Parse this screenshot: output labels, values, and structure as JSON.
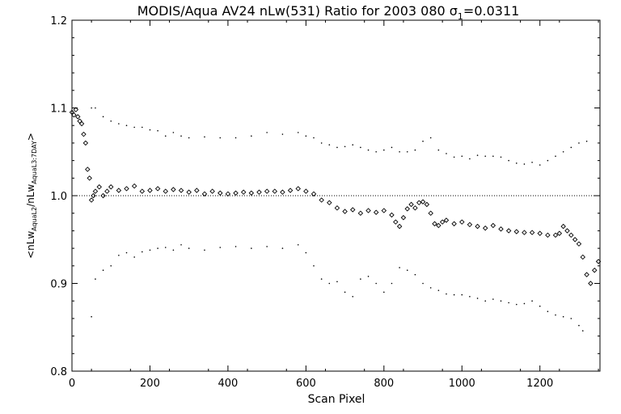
{
  "chart_data": {
    "type": "scatter",
    "title": "MODIS/Aqua AV24 nLw(531) Ratio for 2003 080 σ",
    "title_sub": "1",
    "title_tail": "=0.0311",
    "xlabel": "Scan Pixel",
    "ylabel_parts": [
      "<nLw",
      "AquaL2",
      "/nLw",
      "AquaL3:7DAY",
      ">"
    ],
    "xlim": [
      0,
      1354
    ],
    "ylim": [
      0.8,
      1.2
    ],
    "xticks": [
      0,
      200,
      400,
      600,
      800,
      1000,
      1200
    ],
    "yticks": [
      0.8,
      0.9,
      1.0,
      1.1,
      1.2
    ],
    "ytick_labels": [
      "0.8",
      "0.9",
      "1.0",
      "1.1",
      "1.2"
    ],
    "reference_line": 1.0,
    "grid": false,
    "legend": "none",
    "series": [
      {
        "role": "mean_ratio",
        "marker": "diamond",
        "x": [
          0,
          5,
          10,
          15,
          20,
          25,
          30,
          35,
          40,
          45,
          50,
          55,
          60,
          70,
          80,
          90,
          100,
          120,
          140,
          160,
          180,
          200,
          220,
          240,
          260,
          280,
          300,
          320,
          340,
          360,
          380,
          400,
          420,
          440,
          460,
          480,
          500,
          520,
          540,
          560,
          580,
          600,
          620,
          640,
          660,
          680,
          700,
          720,
          740,
          760,
          780,
          800,
          820,
          830,
          840,
          850,
          860,
          870,
          880,
          890,
          900,
          910,
          920,
          930,
          940,
          950,
          960,
          980,
          1000,
          1020,
          1040,
          1060,
          1080,
          1100,
          1120,
          1140,
          1160,
          1180,
          1200,
          1220,
          1240,
          1250,
          1260,
          1270,
          1280,
          1290,
          1300,
          1310,
          1320,
          1330,
          1340,
          1350
        ],
        "y": [
          1.095,
          1.092,
          1.098,
          1.09,
          1.085,
          1.082,
          1.07,
          1.06,
          1.03,
          1.02,
          0.995,
          1.0,
          1.005,
          1.01,
          1.0,
          1.005,
          1.01,
          1.006,
          1.008,
          1.011,
          1.005,
          1.006,
          1.008,
          1.005,
          1.007,
          1.006,
          1.004,
          1.006,
          1.002,
          1.005,
          1.003,
          1.002,
          1.003,
          1.004,
          1.003,
          1.004,
          1.005,
          1.005,
          1.004,
          1.006,
          1.008,
          1.005,
          1.002,
          0.995,
          0.992,
          0.986,
          0.982,
          0.984,
          0.98,
          0.983,
          0.981,
          0.983,
          0.978,
          0.97,
          0.965,
          0.975,
          0.985,
          0.99,
          0.986,
          0.992,
          0.993,
          0.99,
          0.98,
          0.968,
          0.966,
          0.97,
          0.972,
          0.968,
          0.97,
          0.967,
          0.965,
          0.963,
          0.966,
          0.962,
          0.96,
          0.959,
          0.958,
          0.958,
          0.957,
          0.955,
          0.955,
          0.957,
          0.965,
          0.96,
          0.955,
          0.95,
          0.945,
          0.93,
          0.91,
          0.9,
          0.915,
          0.925
        ]
      },
      {
        "role": "upper_bound",
        "marker": "dot",
        "x": [
          50,
          60,
          80,
          100,
          120,
          140,
          160,
          180,
          200,
          220,
          240,
          260,
          280,
          300,
          340,
          380,
          420,
          460,
          500,
          540,
          580,
          600,
          620,
          640,
          660,
          680,
          700,
          720,
          740,
          760,
          780,
          800,
          820,
          840,
          860,
          880,
          900,
          920,
          940,
          960,
          980,
          1000,
          1020,
          1040,
          1060,
          1080,
          1100,
          1120,
          1140,
          1160,
          1180,
          1200,
          1220,
          1240,
          1260,
          1280,
          1300,
          1320
        ],
        "y": [
          1.1,
          1.1,
          1.09,
          1.085,
          1.082,
          1.08,
          1.078,
          1.078,
          1.075,
          1.074,
          1.068,
          1.072,
          1.068,
          1.066,
          1.067,
          1.066,
          1.066,
          1.068,
          1.072,
          1.07,
          1.072,
          1.068,
          1.066,
          1.06,
          1.058,
          1.055,
          1.056,
          1.058,
          1.055,
          1.052,
          1.05,
          1.052,
          1.055,
          1.05,
          1.05,
          1.052,
          1.062,
          1.066,
          1.052,
          1.048,
          1.044,
          1.045,
          1.042,
          1.046,
          1.045,
          1.045,
          1.044,
          1.04,
          1.037,
          1.036,
          1.038,
          1.035,
          1.04,
          1.045,
          1.05,
          1.055,
          1.06,
          1.062
        ]
      },
      {
        "role": "lower_bound",
        "marker": "dot",
        "x": [
          50,
          60,
          80,
          100,
          120,
          140,
          160,
          180,
          200,
          220,
          240,
          260,
          280,
          300,
          340,
          380,
          420,
          460,
          500,
          540,
          580,
          600,
          620,
          640,
          660,
          680,
          700,
          720,
          740,
          760,
          780,
          800,
          820,
          840,
          860,
          880,
          900,
          920,
          940,
          960,
          980,
          1000,
          1020,
          1040,
          1060,
          1080,
          1100,
          1120,
          1140,
          1160,
          1180,
          1200,
          1220,
          1240,
          1260,
          1280,
          1300,
          1310
        ],
        "y": [
          0.862,
          0.905,
          0.915,
          0.92,
          0.932,
          0.935,
          0.93,
          0.936,
          0.938,
          0.94,
          0.941,
          0.938,
          0.944,
          0.94,
          0.938,
          0.941,
          0.942,
          0.94,
          0.942,
          0.94,
          0.944,
          0.935,
          0.92,
          0.905,
          0.9,
          0.902,
          0.89,
          0.885,
          0.905,
          0.908,
          0.9,
          0.89,
          0.9,
          0.918,
          0.915,
          0.91,
          0.9,
          0.895,
          0.892,
          0.888,
          0.887,
          0.887,
          0.885,
          0.883,
          0.88,
          0.882,
          0.88,
          0.878,
          0.876,
          0.877,
          0.88,
          0.874,
          0.868,
          0.864,
          0.862,
          0.86,
          0.852,
          0.846
        ]
      }
    ]
  }
}
